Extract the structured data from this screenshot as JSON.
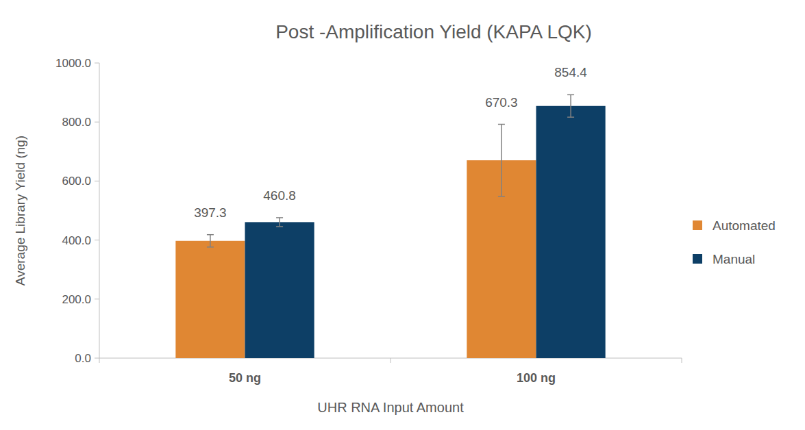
{
  "chart_data": {
    "type": "bar",
    "title": "Post -Amplification Yield (KAPA LQK)",
    "x_label": "UHR RNA Input Amount",
    "y_label": "Average Library Yield (ng)",
    "categories": [
      "50 ng",
      "100 ng"
    ],
    "series": [
      {
        "name": "Automated",
        "color": "#e08733",
        "values": [
          397.3,
          670.3
        ],
        "errors": [
          21,
          122
        ]
      },
      {
        "name": "Manual",
        "color": "#0d3f66",
        "values": [
          460.8,
          854.4
        ],
        "errors": [
          15,
          38
        ]
      }
    ],
    "ylim": [
      0,
      1000
    ],
    "yticks": [
      {
        "value": 0,
        "label": "0.0"
      },
      {
        "value": 200,
        "label": "200.0"
      },
      {
        "value": 400,
        "label": "400.0"
      },
      {
        "value": 600,
        "label": "600.0"
      },
      {
        "value": 800,
        "label": "800.0"
      },
      {
        "value": 1000,
        "label": "1000.0"
      }
    ],
    "grid": false,
    "legend": "right",
    "data_labels": true
  }
}
